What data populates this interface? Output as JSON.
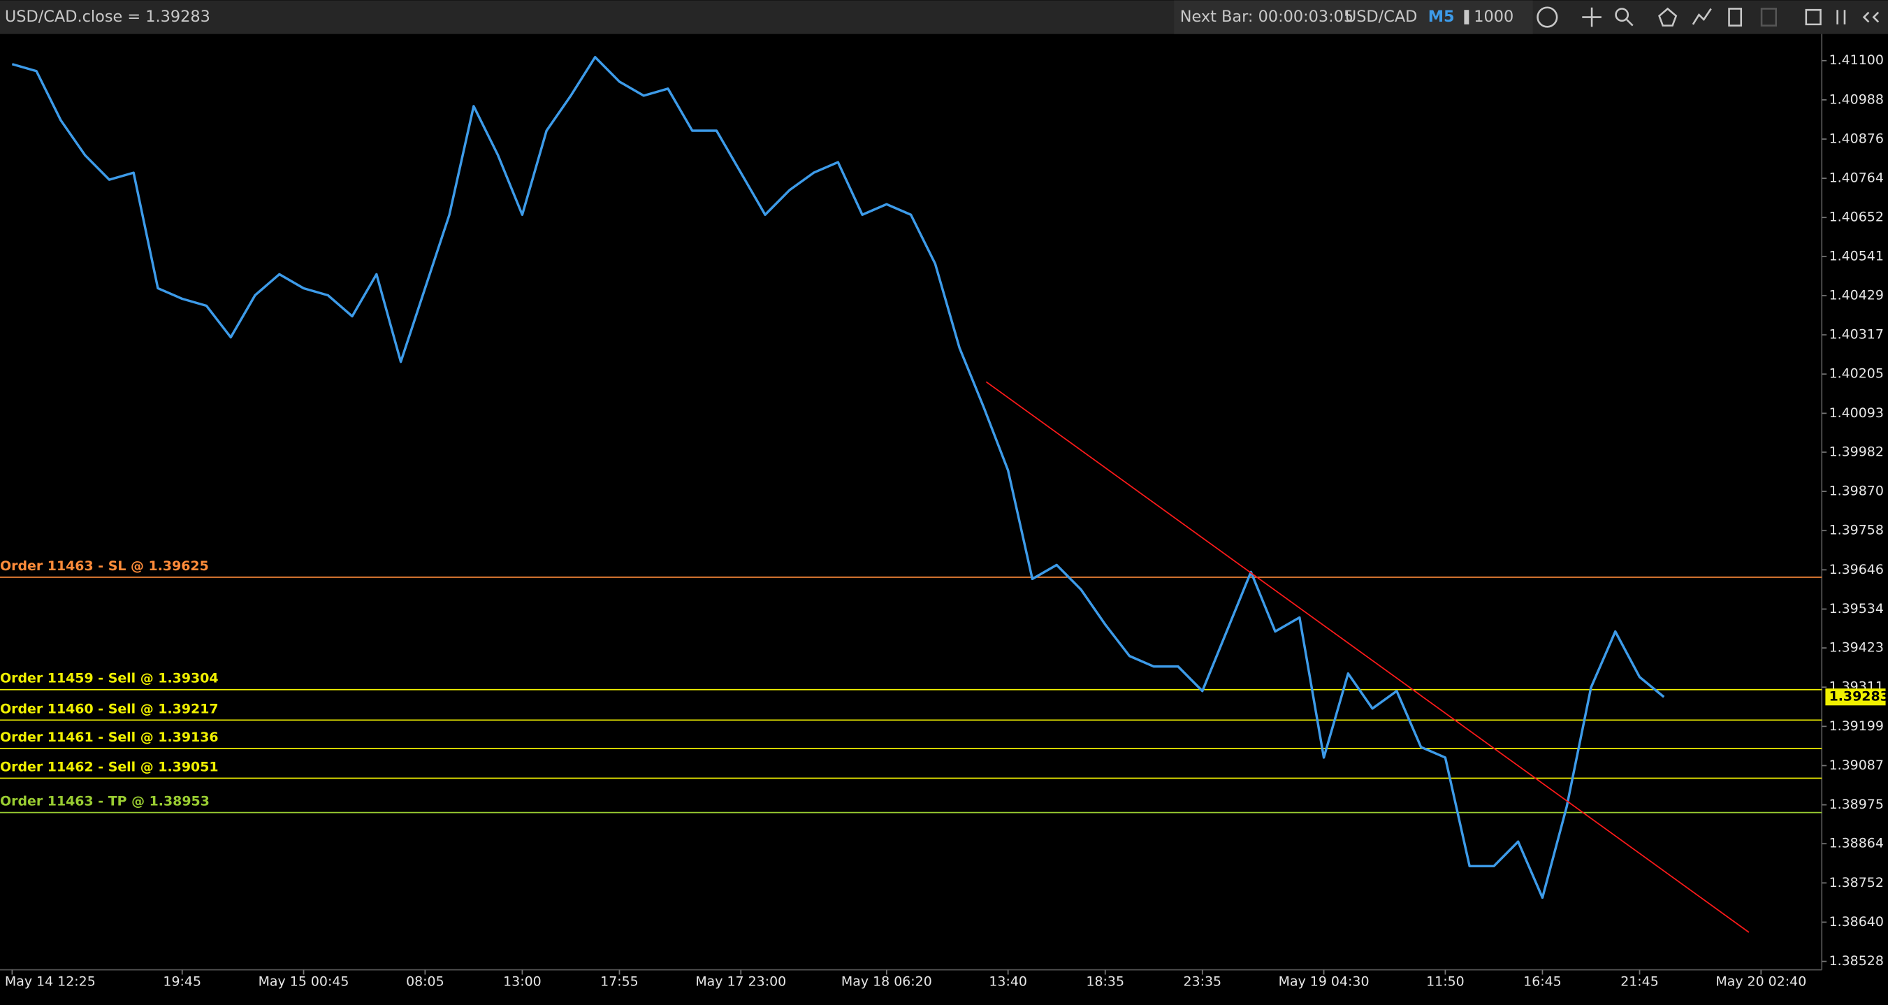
{
  "toolbar": {
    "title": "USD/CAD.close = 1.39283",
    "next_bar": "Next Bar: 00:00:03:05",
    "symbol": "USD/CAD",
    "timeframe": "M5",
    "bars": "1000"
  },
  "chart_data": {
    "type": "line",
    "color": "#3d9be9",
    "categories": [
      "May 14 12:25",
      null,
      null,
      null,
      null,
      null,
      null,
      "19:45",
      null,
      null,
      null,
      null,
      "May 15 00:45",
      null,
      null,
      null,
      null,
      "08:05",
      null,
      null,
      null,
      "13:00",
      null,
      null,
      null,
      "17:55",
      null,
      null,
      null,
      null,
      "May 17 23:00",
      null,
      null,
      null,
      null,
      null,
      "May 18 06:20",
      null,
      null,
      null,
      null,
      "13:40",
      null,
      null,
      null,
      "18:35",
      null,
      null,
      null,
      "23:35",
      null,
      null,
      null,
      null,
      "May 19 04:30",
      null,
      null,
      null,
      null,
      "11:50",
      null,
      null,
      null,
      "16:45",
      null,
      null,
      null,
      "21:45",
      null,
      null,
      null,
      null,
      "May 20 02:40",
      null,
      null
    ],
    "values": [
      1.4109,
      1.4107,
      1.4093,
      1.4083,
      1.4076,
      1.4078,
      1.4045,
      1.4042,
      1.404,
      1.4031,
      1.4043,
      1.4049,
      1.4045,
      1.4043,
      1.4037,
      1.4049,
      1.4024,
      1.4045,
      1.4066,
      1.4097,
      1.4083,
      1.4066,
      1.409,
      1.41,
      1.4111,
      1.4104,
      1.41,
      1.4102,
      1.409,
      1.409,
      1.4078,
      1.4066,
      1.4073,
      1.4078,
      1.4081,
      1.4066,
      1.4069,
      1.4066,
      1.4052,
      1.4028,
      1.4011,
      1.3993,
      1.3962,
      1.3966,
      1.3959,
      1.3949,
      1.394,
      1.3937,
      1.3937,
      1.393,
      1.3947,
      1.3964,
      1.3947,
      1.3951,
      1.3911,
      1.3935,
      1.3925,
      1.393,
      1.3914,
      1.3911,
      1.388,
      1.388,
      1.3887,
      1.3871,
      1.3897,
      1.3931,
      1.3947,
      1.3934,
      1.39283,
      null,
      null,
      null,
      null,
      null,
      null
    ],
    "ylim": [
      1.38504,
      1.41176
    ],
    "yticks": [
      {
        "value": 1.411,
        "label": "1.41100"
      },
      1.40988,
      1.40876,
      1.40764,
      1.40652,
      1.40541,
      1.40429,
      1.40317,
      1.40205,
      1.40093,
      1.39982,
      {
        "value": 1.3987,
        "label": "1.39870"
      },
      1.39758,
      1.39646,
      1.39534,
      1.39423,
      1.39311,
      1.39199,
      1.39087,
      1.38975,
      1.38864,
      1.38752,
      {
        "value": 1.3864,
        "label": "1.38640"
      },
      1.38528
    ],
    "current_price": 1.39283,
    "orders": [
      {
        "label": "Order 11463 - SL @ 1.39625",
        "value": 1.39625,
        "color": "#ff8c3a"
      },
      {
        "label": "Order 11459 - Sell @ 1.39304",
        "value": 1.39304,
        "color": "#f0f000"
      },
      {
        "label": "Order 11460 - Sell @ 1.39217",
        "value": 1.39217,
        "color": "#f0f000"
      },
      {
        "label": "Order 11461 - Sell @ 1.39136",
        "value": 1.39136,
        "color": "#f0f000"
      },
      {
        "label": "Order 11462 - Sell @ 1.39051",
        "value": 1.39051,
        "color": "#f0f000"
      },
      {
        "label": "Order 11463 - TP @ 1.38953",
        "value": 1.38953,
        "color": "#9acd32"
      }
    ],
    "trendline": {
      "values": [
        1.40183,
        1.38611
      ],
      "color": "#ff1a1a"
    }
  }
}
